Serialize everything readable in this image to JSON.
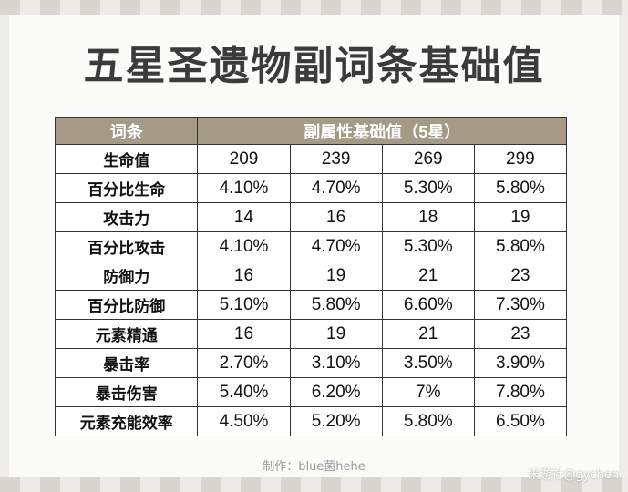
{
  "title": "五星圣遗物副词条基础值",
  "table": {
    "header_label": "词条",
    "header_values": "副属性基础值（5星）",
    "rows": [
      {
        "label": "生命值",
        "values": [
          "209",
          "239",
          "269",
          "299"
        ]
      },
      {
        "label": "百分比生命",
        "values": [
          "4.10%",
          "4.70%",
          "5.30%",
          "5.80%"
        ]
      },
      {
        "label": "攻击力",
        "values": [
          "14",
          "16",
          "18",
          "19"
        ]
      },
      {
        "label": "百分比攻击",
        "values": [
          "4.10%",
          "4.70%",
          "5.30%",
          "5.80%"
        ]
      },
      {
        "label": "防御力",
        "values": [
          "16",
          "19",
          "21",
          "23"
        ]
      },
      {
        "label": "百分比防御",
        "values": [
          "5.10%",
          "5.80%",
          "6.60%",
          "7.30%"
        ]
      },
      {
        "label": "元素精通",
        "values": [
          "16",
          "19",
          "21",
          "23"
        ]
      },
      {
        "label": "暴击率",
        "values": [
          "2.70%",
          "3.10%",
          "3.50%",
          "3.90%"
        ]
      },
      {
        "label": "暴击伤害",
        "values": [
          "5.40%",
          "6.20%",
          "7%",
          "7.80%"
        ]
      },
      {
        "label": "元素充能效率",
        "values": [
          "4.50%",
          "5.20%",
          "5.80%",
          "6.50%"
        ]
      }
    ]
  },
  "credit": "制作：blue菌hehe",
  "watermark": "米游社@gychen",
  "colors": {
    "header_bg": "#a49a86",
    "title": "#3b3b3b"
  }
}
